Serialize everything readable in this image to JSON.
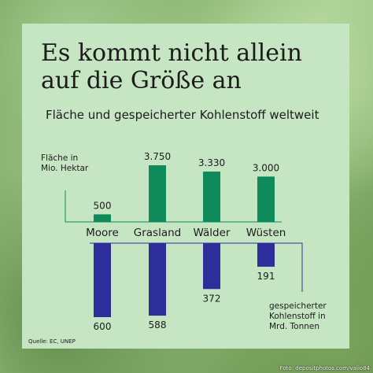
{
  "chart_data": {
    "type": "bar",
    "title": "Es kommt nicht allein auf die Größe an",
    "subtitle": "Fläche und gespeicherter Kohlenstoff weltweit",
    "categories": [
      "Moore",
      "Grasland",
      "Wälder",
      "Wüsten"
    ],
    "series": [
      {
        "name": "Fläche in Mio. Hektar",
        "name_lines": [
          "Fläche in",
          "Mio. Hektar"
        ],
        "values": [
          500,
          3750,
          3330,
          3000
        ],
        "labels": [
          "500",
          "3.750",
          "3.330",
          "3.000"
        ],
        "color": "#0f8a5a"
      },
      {
        "name": "gespeicherter Kohlenstoff in Mrd. Tonnen",
        "name_lines": [
          "gespeicherter",
          "Kohlenstoff in",
          "Mrd. Tonnen"
        ],
        "values": [
          600,
          588,
          372,
          191
        ],
        "labels": [
          "600",
          "588",
          "372",
          "191"
        ],
        "color": "#2d2e99"
      }
    ]
  },
  "source": "Quelle: EC, UNEP",
  "photo_credit": "Foto: depositphotos.com/valio84"
}
